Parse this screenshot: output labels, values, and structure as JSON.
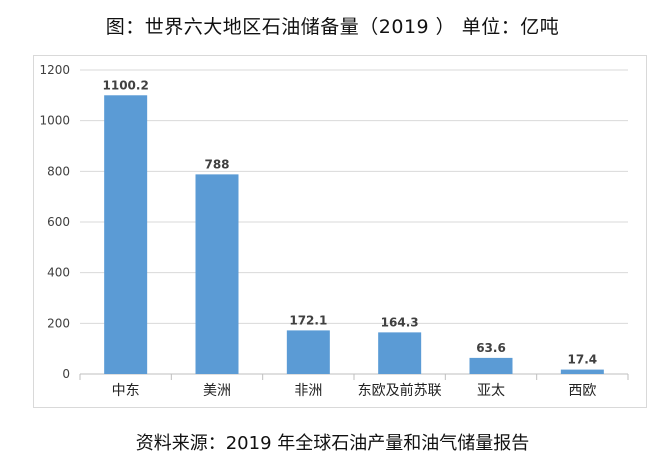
{
  "title": "图：世界六大地区石油储备量（2019 ） 单位：亿吨",
  "source": "资料来源：2019 年全球石油产量和油气储量报告",
  "chart_data": {
    "type": "bar",
    "categories": [
      "中东",
      "美洲",
      "非洲",
      "东欧及前苏联",
      "亚太",
      "西欧"
    ],
    "values": [
      1100.2,
      788,
      172.1,
      164.3,
      63.6,
      17.4
    ],
    "data_labels": [
      "1100.2",
      "788",
      "172.1",
      "164.3",
      "63.6",
      "17.4"
    ],
    "yticks": [
      0,
      200,
      400,
      600,
      800,
      1000,
      1200
    ],
    "ylim": [
      0,
      1200
    ],
    "grid": true,
    "bar_color": "#5b9bd5",
    "grid_color": "#d9d9d9"
  }
}
